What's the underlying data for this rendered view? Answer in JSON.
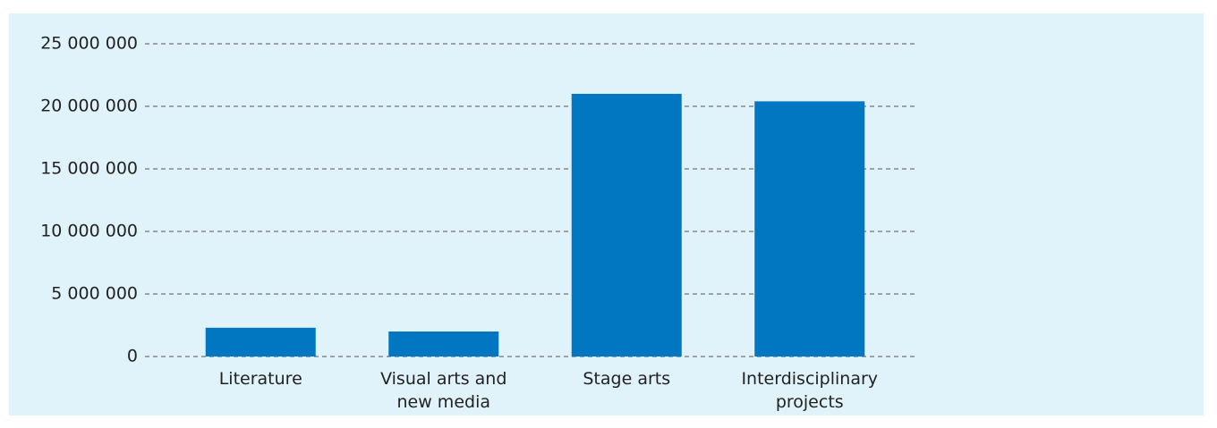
{
  "chart_data": {
    "type": "bar",
    "categories": [
      "Literature",
      "Visual arts and new media",
      "Stage arts",
      "Interdisciplinary projects"
    ],
    "values": [
      2300000,
      2000000,
      21000000,
      20400000
    ],
    "color": "#0077c0",
    "ylim": [
      0,
      25000000
    ],
    "yticks": [
      0,
      {
        "value": 5000000,
        "label": "5 000 000"
      },
      {
        "value": 10000000,
        "label": "10 000 000"
      },
      {
        "value": 15000000,
        "label": "15 000 000"
      },
      {
        "value": 20000000,
        "label": "20 000 000"
      },
      {
        "value": 25000000,
        "label": "25 000 000"
      }
    ],
    "grid": true
  }
}
